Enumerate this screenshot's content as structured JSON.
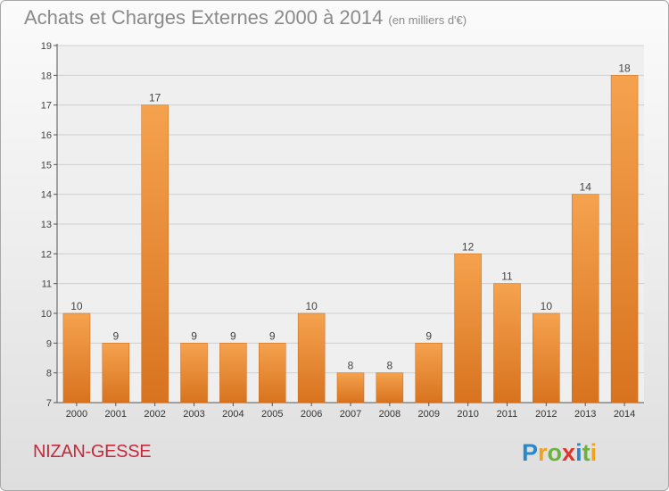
{
  "header": {
    "title": "Achats et Charges Externes 2000 à 2014",
    "unit": "(en milliers d'€)"
  },
  "footer": {
    "place": "NIZAN-GESSE",
    "logo_text": "Proxiti"
  },
  "colors": {
    "bar_light": "#f5a24e",
    "bar_dark": "#d8731f",
    "axis": "#555555",
    "grid": "#cfcfcf",
    "place": "#c42a3c"
  },
  "chart_data": {
    "type": "bar",
    "title": "Achats et Charges Externes 2000 à 2014",
    "subtitle": "(en milliers d'€)",
    "xlabel": "",
    "ylabel": "",
    "categories": [
      "2000",
      "2001",
      "2002",
      "2003",
      "2004",
      "2005",
      "2006",
      "2007",
      "2008",
      "2009",
      "2010",
      "2011",
      "2012",
      "2013",
      "2014"
    ],
    "values": [
      10,
      9,
      17,
      9,
      9,
      9,
      10,
      8,
      8,
      9,
      12,
      11,
      10,
      14,
      18
    ],
    "ylim": [
      7,
      19
    ],
    "yticks": [
      7,
      8,
      9,
      10,
      11,
      12,
      13,
      14,
      15,
      16,
      17,
      18,
      19
    ],
    "grid": "horizontal",
    "legend": "none"
  }
}
